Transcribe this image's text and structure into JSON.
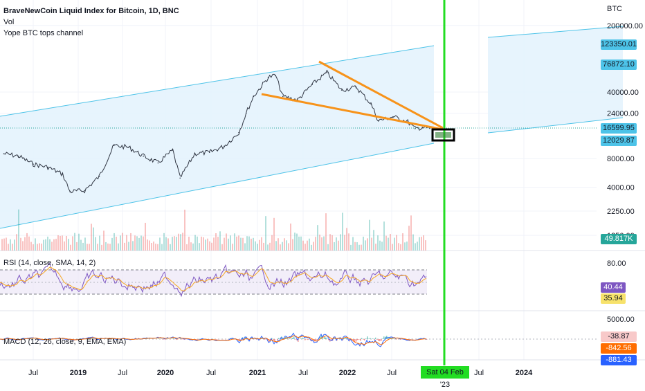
{
  "header": {
    "title": "BraveNewCoin Liquid Index for Bitcoin, 1D, BNC",
    "vol_label": "Vol",
    "channel_label": "Yope BTC tops channel"
  },
  "price_axis": {
    "currency": "BTC",
    "ticks": [
      "200000.00",
      "40000.00",
      "24000.00",
      "8000.00",
      "4000.00",
      "2250.00",
      "1250.00"
    ],
    "tags": {
      "top_channel": "123350.01",
      "upper_mid": "76872.10",
      "current": "16599.95",
      "lower": "12029.87",
      "volume": "49.817K"
    }
  },
  "rsi_panel": {
    "label": "RSI (14, close, SMA, 14, 2)",
    "tick": "80.00",
    "rsi_tag": "40.44",
    "sma_tag": "35.94"
  },
  "macd_panel": {
    "label": "MACD (12, 26, close, 9, EMA, EMA)",
    "tick": "5000.00",
    "hist_tag": "-38.87",
    "signal_tag": "-842.56",
    "macd_tag": "-881.43"
  },
  "time_axis": {
    "labels": [
      "Jul",
      "2019",
      "Jul",
      "2020",
      "Jul",
      "2021",
      "Jul",
      "2022",
      "Jul",
      "Jul",
      "2024"
    ],
    "highlight": "Sat 04 Feb '23"
  },
  "colors": {
    "channel_fill": "#e3f2fd",
    "channel_line": "#4dc3e8",
    "wedge": "#f7931a",
    "vertical_marker": "#22dd22",
    "rsi_line": "#7e57c2",
    "rsi_sma": "#f5a623",
    "macd_line": "#2962ff",
    "signal_line": "#ff6d00"
  },
  "chart_data": {
    "type": "line",
    "title": "BraveNewCoin Liquid Index for Bitcoin, 1D, BNC",
    "scale": "log",
    "ylim": [
      1000,
      260000
    ],
    "x_range": [
      "2018-03",
      "2024-05"
    ],
    "series": [
      {
        "name": "BraveNewCoin Liquid Index for Bitcoin",
        "x": [
          "2018-03",
          "2018-05",
          "2018-07",
          "2018-09",
          "2018-11",
          "2018-12",
          "2019-02",
          "2019-04",
          "2019-06",
          "2019-08",
          "2019-10",
          "2019-12",
          "2020-02",
          "2020-03",
          "2020-05",
          "2020-07",
          "2020-09",
          "2020-11",
          "2020-12",
          "2021-01",
          "2021-03",
          "2021-04",
          "2021-05",
          "2021-07",
          "2021-09",
          "2021-11",
          "2022-01",
          "2022-03",
          "2022-05",
          "2022-06",
          "2022-08",
          "2022-10",
          "2022-11",
          "2022-12",
          "2023-01"
        ],
        "y": [
          9000,
          8500,
          7000,
          6500,
          5500,
          3600,
          3700,
          5200,
          11000,
          10500,
          8500,
          7200,
          9800,
          5000,
          9000,
          9300,
          10800,
          15000,
          24000,
          36000,
          57000,
          60000,
          36000,
          33000,
          48000,
          64000,
          42000,
          45000,
          30000,
          20000,
          22000,
          19500,
          16500,
          17000,
          16600
        ]
      }
    ],
    "annotations": {
      "channel": {
        "name": "Yope BTC tops channel",
        "upper_end": 123350.01,
        "lower_end": 12029.87
      },
      "wedge": "falling wedge from the 2021 highs converging near Feb 2023",
      "marker_date": "Sat 04 Feb '23"
    },
    "indicators": {
      "rsi": {
        "params": "14, close, SMA, 14, 2",
        "rsi": 40.44,
        "sma": 35.94,
        "band": [
          35,
          80
        ]
      },
      "macd": {
        "params": "12, 26, close, 9, EMA, EMA",
        "histogram": -38.87,
        "signal": -842.56,
        "macd": -881.43
      }
    }
  }
}
